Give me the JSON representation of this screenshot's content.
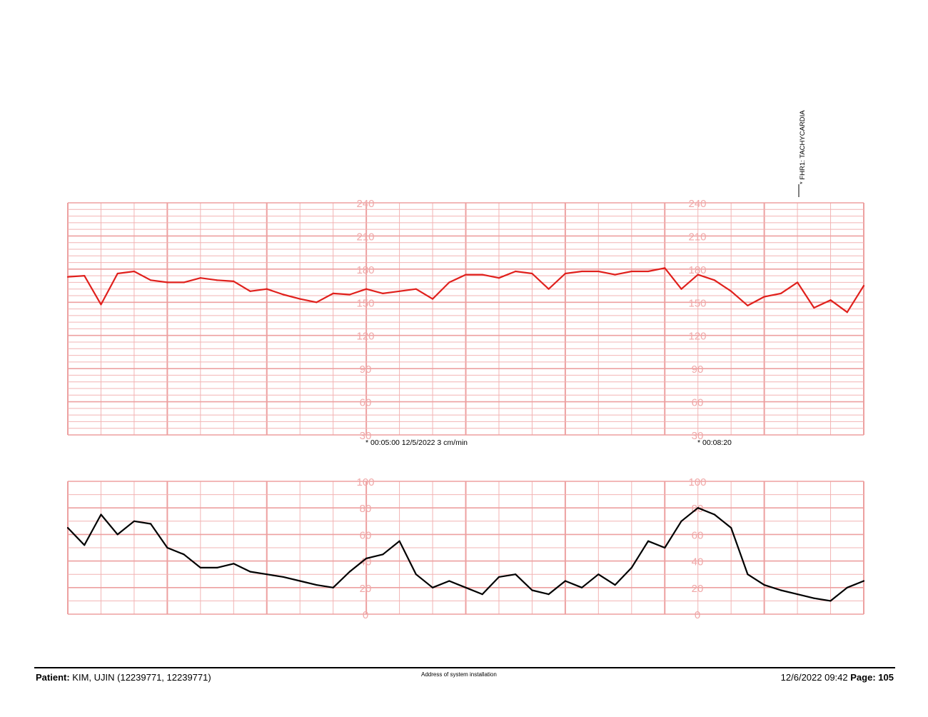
{
  "annotations": {
    "event": "* FHR1: TACHYCARDIA",
    "time_mark_1": "* 00:05:00  12/5/2022  3 cm/min",
    "time_mark_2": "* 00:08:20"
  },
  "footer": {
    "patient_label": "Patient:",
    "patient_value": "KIM, UJIN (12239771, 12239771)",
    "address": "Address of system installation",
    "datetime": "12/6/2022 09:42",
    "page_label": "Page:",
    "page_number": "105"
  },
  "colors": {
    "grid": "#f2b4b4",
    "grid_major": "#eda0a0",
    "axis_label": "#f0a8a8",
    "fhr_trace": "#e0201c",
    "uterine_trace": "#000000"
  },
  "chart_data": [
    {
      "type": "line",
      "title": "",
      "ylim": [
        30,
        240
      ],
      "y_ticks": [
        240,
        210,
        180,
        150,
        120,
        90,
        60,
        30
      ],
      "grid": true,
      "x": [
        0,
        0.5,
        1,
        1.5,
        2,
        2.5,
        3,
        3.5,
        4,
        4.5,
        5,
        5.5,
        6,
        6.5,
        7,
        7.5,
        8,
        8.5,
        9,
        9.5,
        10,
        10.5,
        11,
        11.5,
        12,
        12.5,
        13,
        13.5,
        14,
        14.5,
        15,
        15.5,
        16,
        16.5,
        17,
        17.5,
        18,
        18.5,
        19,
        19.5,
        20,
        20.5,
        21,
        21.5,
        22,
        22.5,
        23,
        23.5,
        24
      ],
      "series": [
        {
          "values": [
            173,
            174,
            148,
            176,
            178,
            170,
            168,
            168,
            172,
            170,
            169,
            160,
            162,
            157,
            153,
            150,
            158,
            157,
            162,
            158,
            160,
            162,
            153,
            168,
            175,
            175,
            172,
            178,
            176,
            162,
            176,
            178,
            178,
            175,
            178,
            178,
            181,
            162,
            175,
            170,
            160,
            147,
            155,
            158,
            168,
            145,
            152,
            141,
            165
          ]
        }
      ]
    },
    {
      "type": "line",
      "title": "",
      "ylim": [
        0,
        100
      ],
      "y_ticks": [
        100,
        80,
        60,
        40,
        20,
        0
      ],
      "grid": true,
      "x": [
        0,
        0.5,
        1,
        1.5,
        2,
        2.5,
        3,
        3.5,
        4,
        4.5,
        5,
        5.5,
        6,
        6.5,
        7,
        7.5,
        8,
        8.5,
        9,
        9.5,
        10,
        10.5,
        11,
        11.5,
        12,
        12.5,
        13,
        13.5,
        14,
        14.5,
        15,
        15.5,
        16,
        16.5,
        17,
        17.5,
        18,
        18.5,
        19,
        19.5,
        20,
        20.5,
        21,
        21.5,
        22,
        22.5,
        23,
        23.5,
        24
      ],
      "series": [
        {
          "values": [
            65,
            52,
            75,
            60,
            70,
            68,
            50,
            45,
            35,
            35,
            38,
            32,
            30,
            28,
            25,
            22,
            20,
            32,
            42,
            45,
            55,
            30,
            20,
            25,
            20,
            15,
            28,
            30,
            18,
            15,
            25,
            20,
            30,
            22,
            35,
            55,
            50,
            70,
            80,
            75,
            65,
            30,
            22,
            18,
            15,
            12,
            10,
            20,
            25
          ]
        }
      ]
    }
  ]
}
